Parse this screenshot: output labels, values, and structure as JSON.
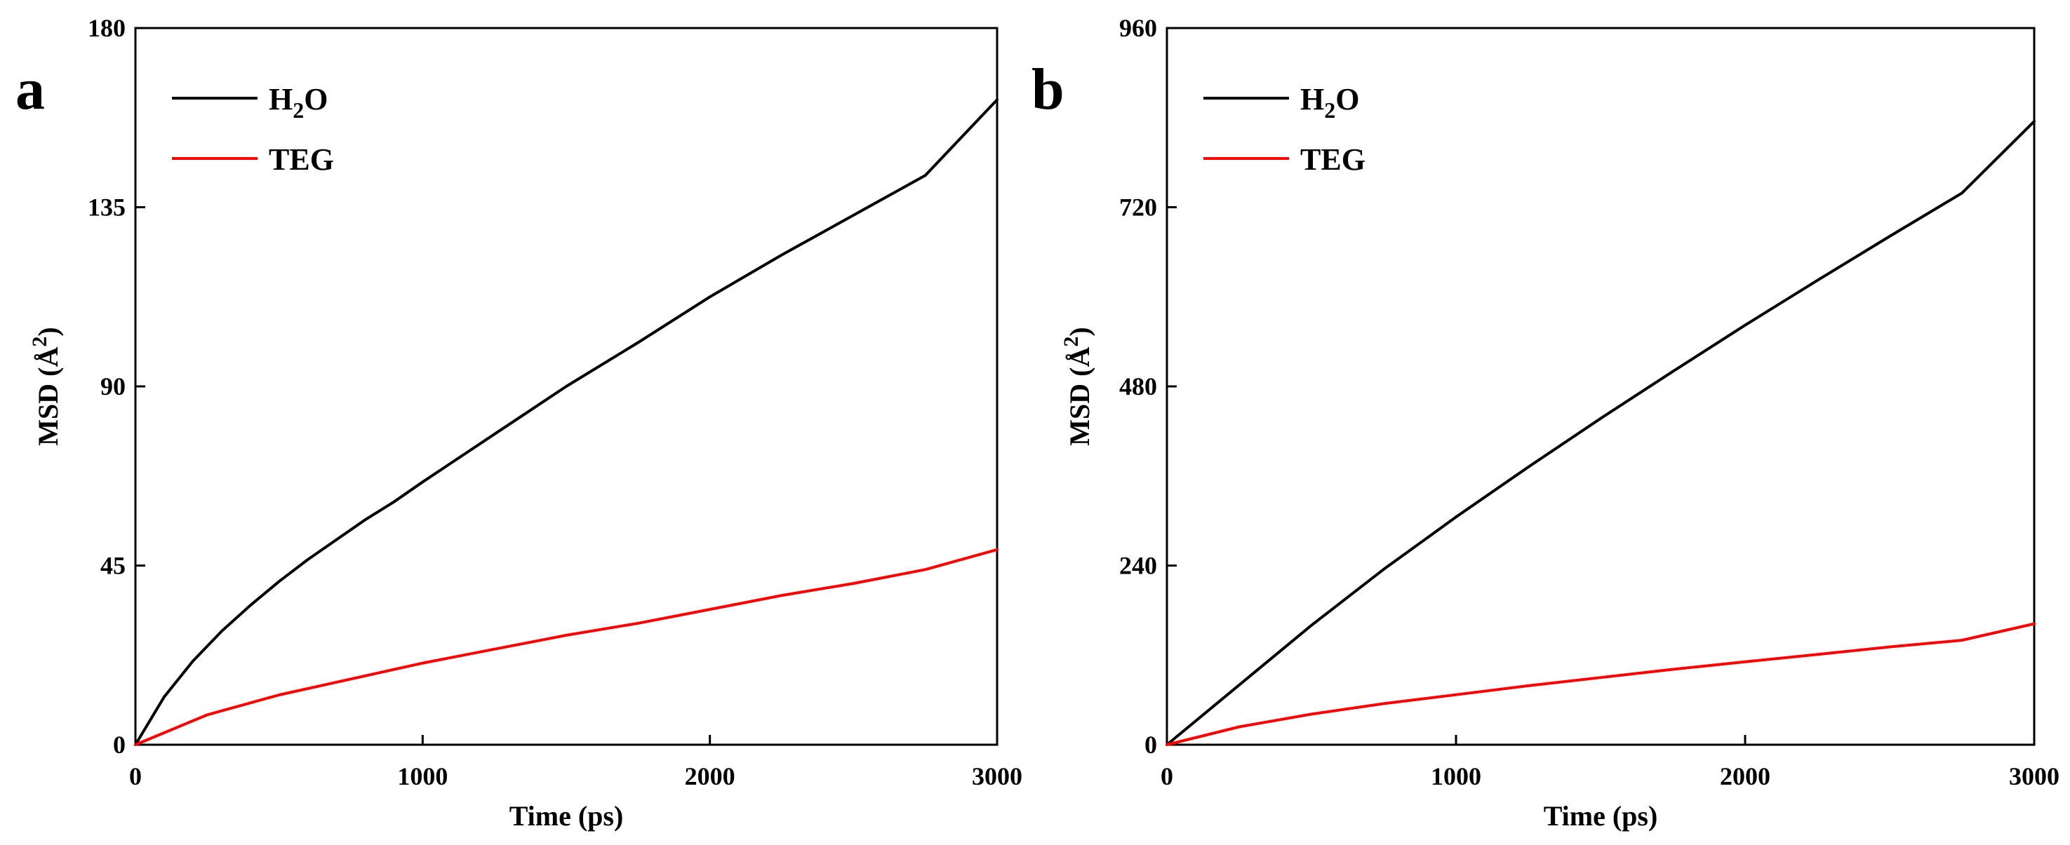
{
  "chart_data": [
    {
      "type": "line",
      "panel_label": "a",
      "xlabel": "Time (ps)",
      "ylabel": "MSD",
      "ylabel_unit": "Å",
      "ylabel_unit_superscript": "2",
      "xlim": [
        0,
        3000
      ],
      "ylim": [
        0,
        180
      ],
      "xticks": [
        0,
        1000,
        2000,
        3000
      ],
      "xtick_labels": [
        "0",
        "1000",
        "2000",
        "3000"
      ],
      "yticks": [
        0,
        45,
        90,
        135,
        180
      ],
      "ytick_labels": [
        "0",
        "45",
        "90",
        "135",
        "180"
      ],
      "grid": false,
      "legend_position": "top-left",
      "series": [
        {
          "name": "H2O",
          "label_main": "H",
          "label_sub": "2",
          "label_tail": "O",
          "color": "#000000",
          "x": [
            0,
            100,
            200,
            300,
            400,
            500,
            600,
            700,
            800,
            900,
            1000,
            1250,
            1500,
            1750,
            2000,
            2250,
            2500,
            2750,
            3000
          ],
          "y": [
            0,
            12,
            21,
            28.5,
            35,
            41,
            46.5,
            51.5,
            56.5,
            61,
            66,
            78,
            90,
            101,
            112.5,
            123,
            133,
            143,
            162
          ]
        },
        {
          "name": "TEG",
          "label_main": "TEG",
          "color": "#ff0000",
          "x": [
            0,
            250,
            500,
            750,
            1000,
            1250,
            1500,
            1750,
            2000,
            2250,
            2500,
            2750,
            3000
          ],
          "y": [
            0,
            7.5,
            12.5,
            16.5,
            20.5,
            24,
            27.5,
            30.5,
            34,
            37.5,
            40.5,
            44,
            49
          ]
        }
      ]
    },
    {
      "type": "line",
      "panel_label": "b",
      "xlabel": "Time (ps)",
      "ylabel": "MSD",
      "ylabel_unit": "Å",
      "ylabel_unit_superscript": "2",
      "xlim": [
        0,
        3000
      ],
      "ylim": [
        0,
        960
      ],
      "xticks": [
        0,
        1000,
        2000,
        3000
      ],
      "xtick_labels": [
        "0",
        "1000",
        "2000",
        "3000"
      ],
      "yticks": [
        0,
        240,
        480,
        720,
        960
      ],
      "ytick_labels": [
        "0",
        "240",
        "480",
        "720",
        "960"
      ],
      "grid": false,
      "legend_position": "top-left",
      "series": [
        {
          "name": "H2O",
          "label_main": "H",
          "label_sub": "2",
          "label_tail": "O",
          "color": "#000000",
          "x": [
            0,
            250,
            500,
            750,
            1000,
            1250,
            1500,
            1750,
            2000,
            2250,
            2500,
            2750,
            3000
          ],
          "y": [
            0,
            80,
            160,
            235,
            305,
            372,
            437,
            500,
            562,
            622,
            681,
            739,
            835
          ]
        },
        {
          "name": "TEG",
          "label_main": "TEG",
          "color": "#ff0000",
          "x": [
            0,
            250,
            500,
            750,
            1000,
            1250,
            1500,
            1750,
            2000,
            2250,
            2500,
            2750,
            3000
          ],
          "y": [
            0,
            24,
            41,
            55,
            67,
            79,
            90,
            101,
            111,
            121,
            131,
            140,
            162
          ]
        }
      ]
    }
  ]
}
